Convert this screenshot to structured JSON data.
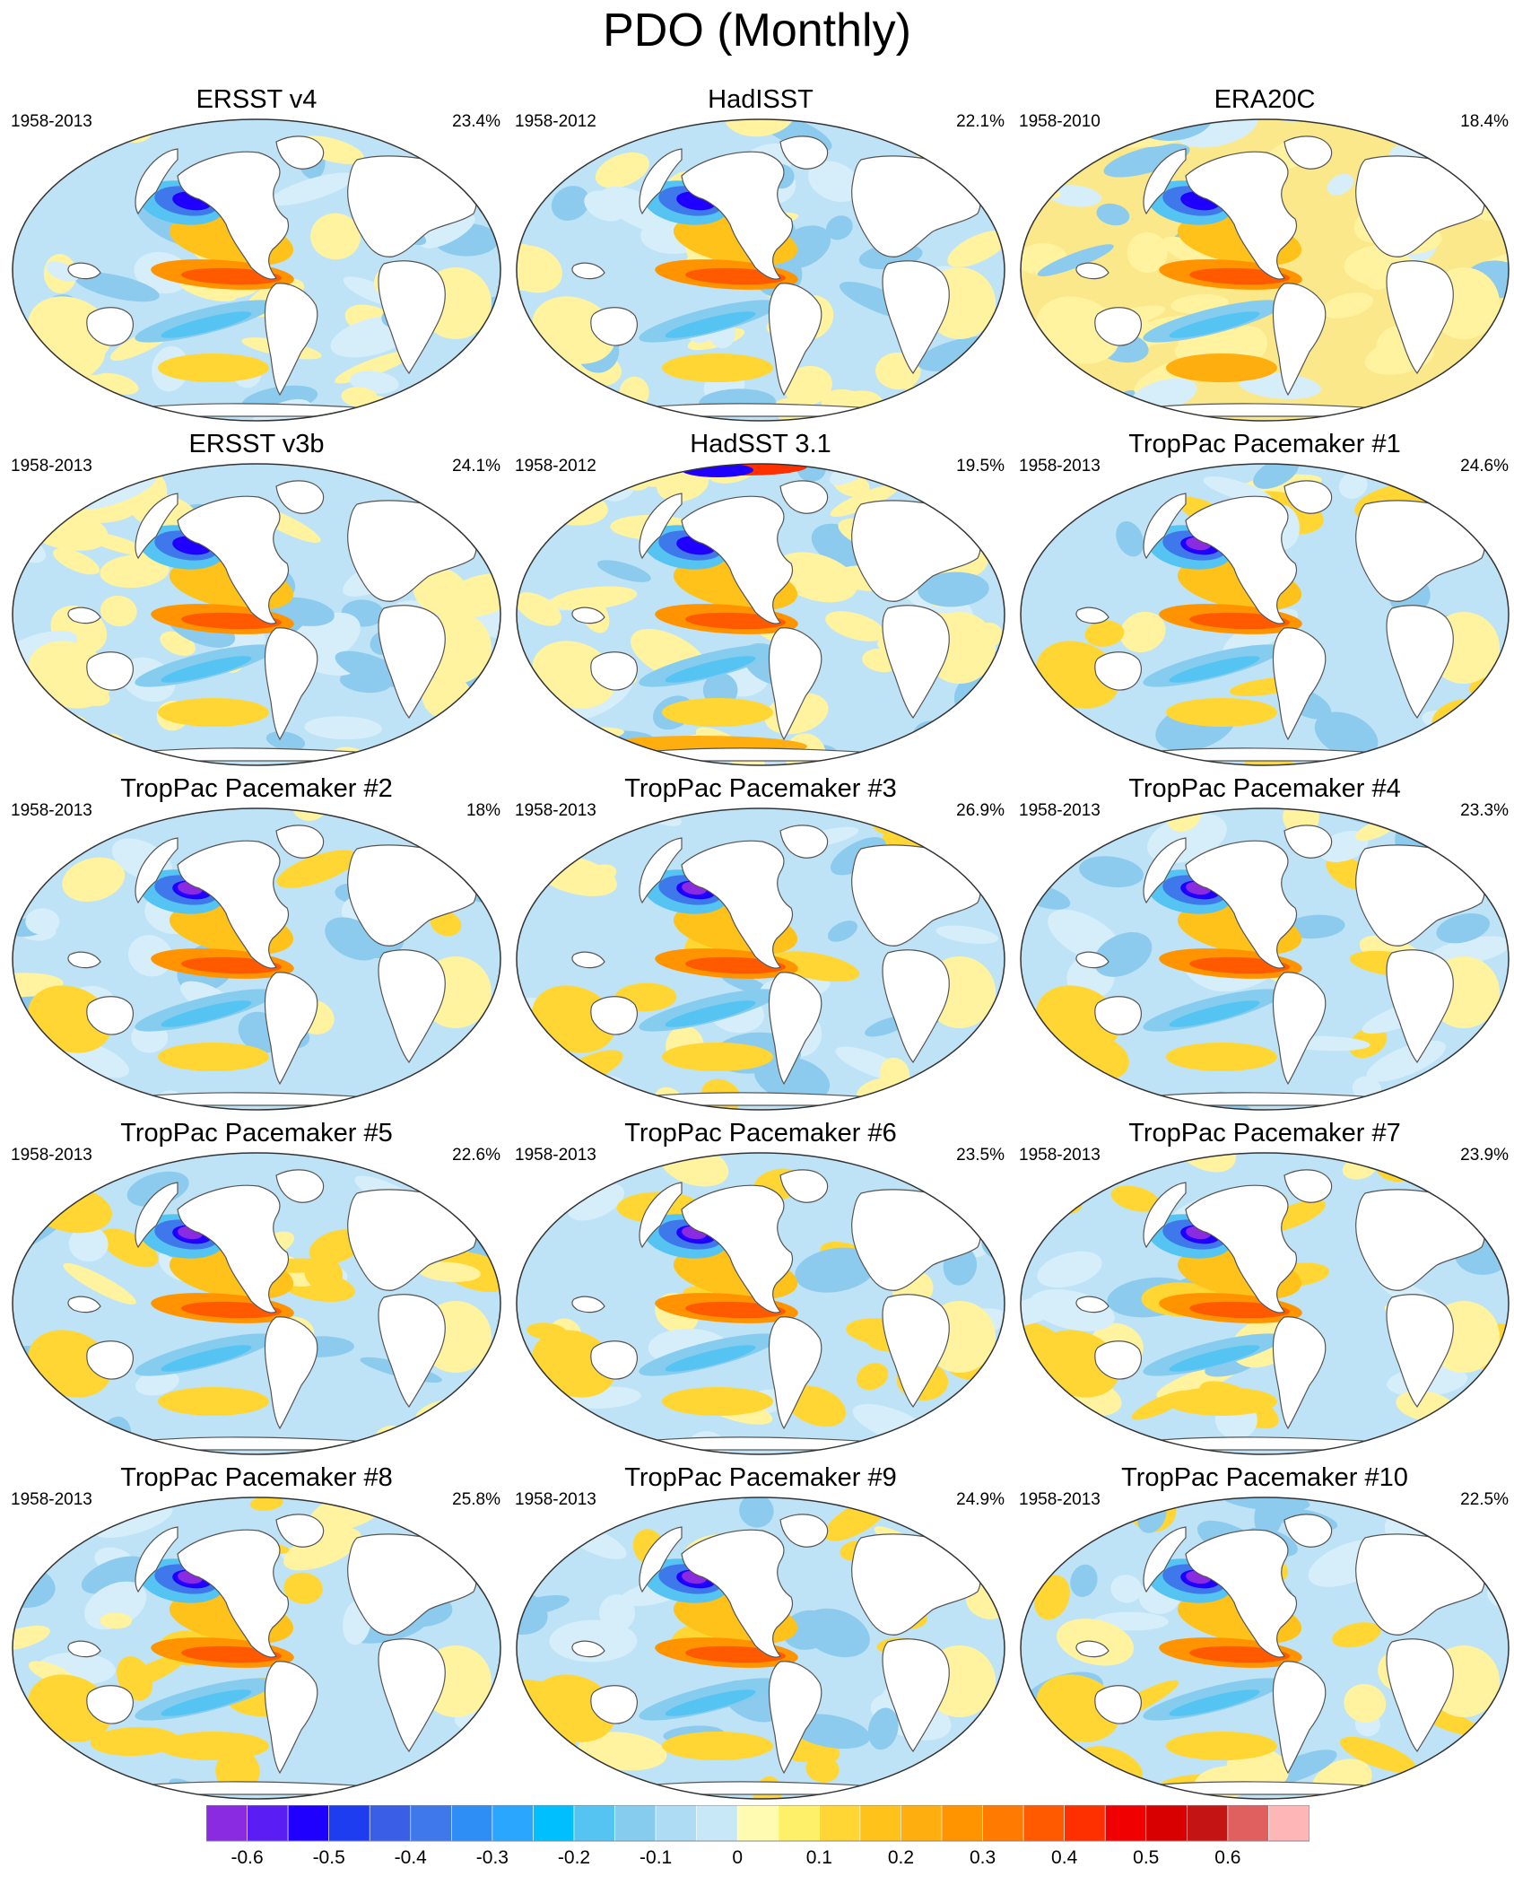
{
  "title": "PDO (Monthly)",
  "panels": [
    {
      "name": "ERSST v4",
      "period": "1958-2013",
      "variance": "23.4%",
      "style": "smooth"
    },
    {
      "name": "HadISST",
      "period": "1958-2012",
      "variance": "22.1%",
      "style": "noisy"
    },
    {
      "name": "ERA20C",
      "period": "1958-2010",
      "variance": "18.4%",
      "style": "noisy-warm-south"
    },
    {
      "name": "ERSST v3b",
      "period": "1958-2013",
      "variance": "24.1%",
      "style": "smooth"
    },
    {
      "name": "HadSST 3.1",
      "period": "1958-2012",
      "variance": "19.5%",
      "style": "gappy"
    },
    {
      "name": "TropPac Pacemaker #1",
      "period": "1958-2013",
      "variance": "24.6%",
      "style": "model"
    },
    {
      "name": "TropPac Pacemaker #2",
      "period": "1958-2013",
      "variance": "18%",
      "style": "model"
    },
    {
      "name": "TropPac Pacemaker #3",
      "period": "1958-2013",
      "variance": "26.9%",
      "style": "model"
    },
    {
      "name": "TropPac Pacemaker #4",
      "period": "1958-2013",
      "variance": "23.3%",
      "style": "model"
    },
    {
      "name": "TropPac Pacemaker #5",
      "period": "1958-2013",
      "variance": "22.6%",
      "style": "model"
    },
    {
      "name": "TropPac Pacemaker #6",
      "period": "1958-2013",
      "variance": "23.5%",
      "style": "model"
    },
    {
      "name": "TropPac Pacemaker #7",
      "period": "1958-2013",
      "variance": "23.9%",
      "style": "model"
    },
    {
      "name": "TropPac Pacemaker #8",
      "period": "1958-2013",
      "variance": "25.8%",
      "style": "model"
    },
    {
      "name": "TropPac Pacemaker #9",
      "period": "1958-2013",
      "variance": "24.9%",
      "style": "model"
    },
    {
      "name": "TropPac Pacemaker #10",
      "period": "1958-2013",
      "variance": "22.5%",
      "style": "model"
    }
  ],
  "colorbar": {
    "colors": [
      "#8a2be2",
      "#5a1ef5",
      "#1f00ff",
      "#1e3cf0",
      "#3a5fe6",
      "#3f78ea",
      "#2e8ef5",
      "#2aa6ff",
      "#00bfff",
      "#56c4f2",
      "#86ccef",
      "#aedcf5",
      "#c9e8f7",
      "#fffbb0",
      "#fff06a",
      "#ffd633",
      "#ffc21a",
      "#ffae10",
      "#ff9400",
      "#ff7a00",
      "#ff5a00",
      "#ff3000",
      "#f00000",
      "#d80000",
      "#c41414",
      "#e06060",
      "#ffb6b6"
    ],
    "labels": [
      "-0.6",
      "-0.5",
      "-0.4",
      "-0.3",
      "-0.2",
      "-0.1",
      "0",
      "0.1",
      "0.2",
      "0.3",
      "0.4",
      "0.5",
      "0.6"
    ]
  }
}
